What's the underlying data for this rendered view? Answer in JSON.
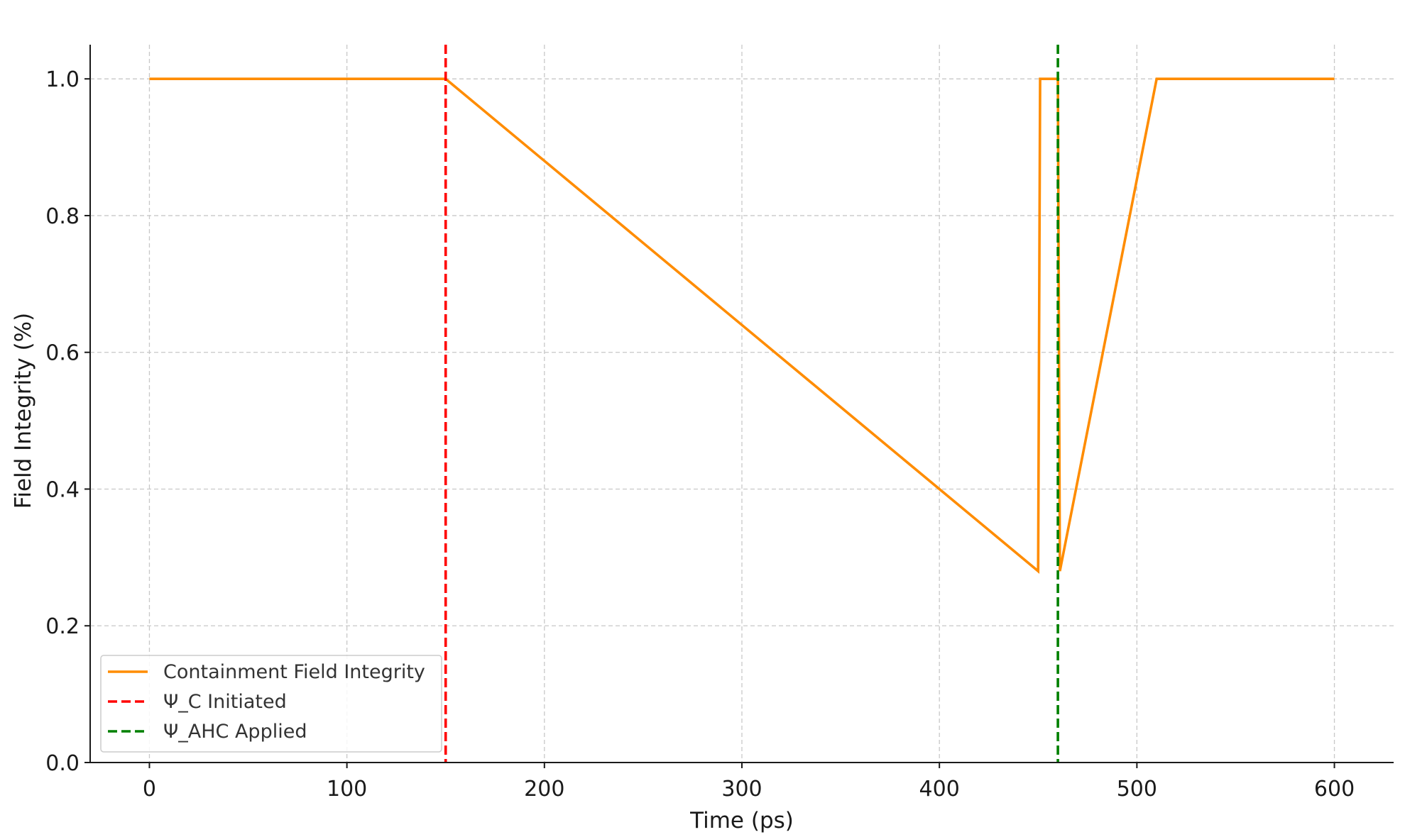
{
  "chart_data": {
    "type": "line",
    "title": "",
    "xlabel": "Time (ps)",
    "ylabel": "Field Integrity (%)",
    "xlim": [
      -30,
      630
    ],
    "ylim": [
      0.0,
      1.05
    ],
    "x_ticks": [
      0,
      100,
      200,
      300,
      400,
      500,
      600
    ],
    "y_ticks": [
      0.0,
      0.2,
      0.4,
      0.6,
      0.8,
      1.0
    ],
    "x_tick_labels": [
      "0",
      "100",
      "200",
      "300",
      "400",
      "500",
      "600"
    ],
    "y_tick_labels": [
      "0.0",
      "0.2",
      "0.4",
      "0.6",
      "0.8",
      "1.0"
    ],
    "grid": true,
    "legend_position": "bottom-left",
    "series": [
      {
        "name": "Containment Field Integrity",
        "color": "#ff8c00",
        "style": "solid",
        "x": [
          0,
          150,
          450,
          451,
          460,
          461,
          510,
          600
        ],
        "y": [
          1.0,
          1.0,
          0.28,
          1.0,
          1.0,
          0.28,
          1.0,
          1.0
        ]
      }
    ],
    "vlines": [
      {
        "name": "Ψ_C Initiated",
        "x": 150,
        "color": "#ff0000",
        "style": "dashed"
      },
      {
        "name": "Ψ_AHC Applied",
        "x": 460,
        "color": "#008000",
        "style": "dashed"
      }
    ]
  }
}
